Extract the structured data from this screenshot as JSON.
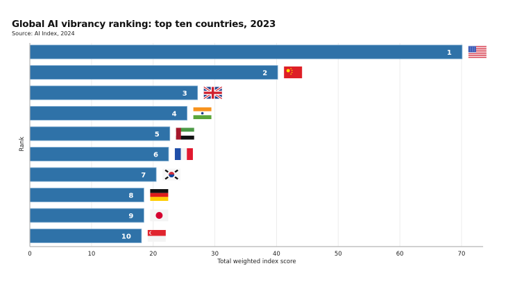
{
  "header": {
    "title": "Global AI vibrancy ranking: top ten countries, 2023",
    "source": "Source: AI Index, 2024"
  },
  "colors": {
    "bar": "#2f72a8",
    "bar_edge": "#8ab4d6",
    "grid": "#ececec",
    "axis": "#b5b5b5"
  },
  "chart_data": {
    "type": "bar",
    "orientation": "horizontal",
    "title": "Global AI vibrancy ranking: top ten countries, 2023",
    "subtitle": "Source: AI Index, 2024",
    "xlabel": "Total weighted index score",
    "ylabel": "Rank",
    "xlim": [
      0,
      73.5
    ],
    "xticks": [
      0,
      10,
      20,
      30,
      40,
      50,
      60,
      70
    ],
    "grid": true,
    "legend": "none",
    "categories": [
      "1",
      "2",
      "3",
      "4",
      "5",
      "6",
      "7",
      "8",
      "9",
      "10"
    ],
    "countries": [
      "United States",
      "China",
      "United Kingdom",
      "India",
      "United Arab Emirates",
      "France",
      "South Korea",
      "Germany",
      "Japan",
      "Singapore"
    ],
    "flags": [
      "us-flag",
      "china-flag",
      "uk-flag",
      "india-flag",
      "uae-flag",
      "france-flag",
      "south-korea-flag",
      "germany-flag",
      "japan-flag",
      "singapore-flag"
    ],
    "values": [
      70.1,
      40.2,
      27.2,
      25.5,
      22.7,
      22.5,
      20.5,
      18.5,
      18.5,
      18.1
    ]
  }
}
